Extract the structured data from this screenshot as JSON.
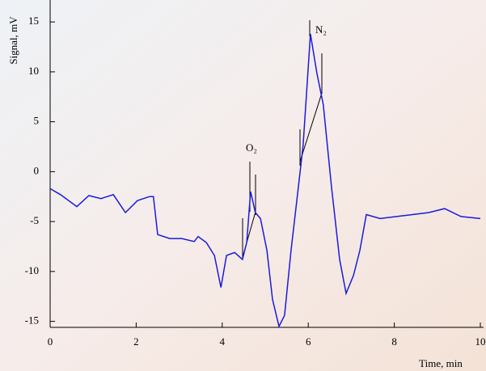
{
  "chart_data": {
    "type": "line",
    "y_label": "Signal, mV",
    "x_label": "Time, min",
    "annotations": [
      "O₂",
      "N₂"
    ],
    "x": [
      0,
      0.24,
      0.62,
      0.9,
      1.18,
      1.47,
      1.75,
      2.03,
      2.31,
      2.4,
      2.5,
      2.78,
      3.06,
      3.35,
      3.44,
      3.63,
      3.82,
      3.97,
      4.1,
      4.29,
      4.47,
      4.57,
      4.66,
      4.77,
      4.89,
      5.04,
      5.17,
      5.32,
      5.45,
      5.6,
      5.75,
      5.88,
      6.05,
      6.2,
      6.35,
      6.54,
      6.73,
      6.88,
      7.05,
      7.2,
      7.35,
      7.67,
      8.05,
      8.42,
      8.8,
      9.17,
      9.55,
      10
    ],
    "series": [
      {
        "name": "Signal",
        "color": "#1a1adc",
        "values": [
          -1.7,
          -2.3,
          -3.5,
          -2.4,
          -2.7,
          -2.3,
          -4.1,
          -2.9,
          -2.5,
          -2.5,
          -6.3,
          -6.7,
          -6.7,
          -7.0,
          -6.5,
          -7.1,
          -8.4,
          -11.6,
          -8.4,
          -8.1,
          -8.8,
          -7.1,
          -2.0,
          -4.1,
          -4.7,
          -7.9,
          -12.8,
          -15.5,
          -14.4,
          -7.9,
          -2.3,
          2.6,
          13.8,
          9.9,
          6.7,
          -1.5,
          -8.8,
          -12.2,
          -10.4,
          -7.9,
          -4.3,
          -4.7,
          -4.5,
          -4.3,
          -4.1,
          -3.7,
          -4.5,
          -4.7
        ]
      }
    ],
    "xlim": [
      0,
      10
    ],
    "ylim": [
      -15.6,
      17.2
    ],
    "xticks": [
      0,
      2,
      4,
      6,
      8,
      10
    ],
    "yticks": [
      -15,
      -10,
      -5,
      0,
      5,
      10,
      15
    ]
  }
}
